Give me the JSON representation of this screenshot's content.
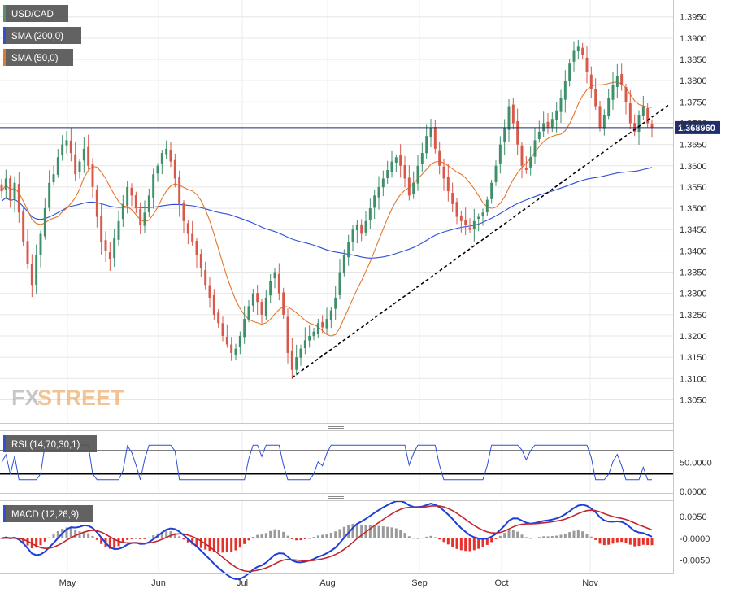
{
  "chart_data": [
    {
      "type": "candlestick",
      "panel": "price",
      "symbol_label": "USD/CAD",
      "legend": [
        {
          "name": "USD/CAD",
          "color": "#5a8f6a"
        },
        {
          "name": "SMA (200,0)",
          "color": "#2e4fd8"
        },
        {
          "name": "SMA (50,0)",
          "color": "#e5762a"
        }
      ],
      "y_ticks": [
        "1.3950",
        "1.3900",
        "1.3850",
        "1.3800",
        "1.3750",
        "1.3700",
        "1.3650",
        "1.3600",
        "1.3550",
        "1.3500",
        "1.3450",
        "1.3400",
        "1.3350",
        "1.3300",
        "1.3250",
        "1.3200",
        "1.3150",
        "1.3100",
        "1.3050"
      ],
      "ylim": [
        1.3005,
        1.398
      ],
      "last_price": "1.368960",
      "last_price_value": 1.36896,
      "x_months": [
        "May",
        "Jun",
        "Jul",
        "Aug",
        "Sep",
        "Oct",
        "Nov"
      ],
      "candle_colors": {
        "up": "#3f8f6b",
        "down": "#d8584a"
      },
      "closes": [
        1.354,
        1.357,
        1.352,
        1.356,
        1.349,
        1.342,
        1.337,
        1.332,
        1.339,
        1.344,
        1.35,
        1.356,
        1.358,
        1.362,
        1.365,
        1.366,
        1.363,
        1.358,
        1.361,
        1.364,
        1.36,
        1.355,
        1.348,
        1.342,
        1.34,
        1.338,
        1.343,
        1.347,
        1.351,
        1.355,
        1.353,
        1.35,
        1.346,
        1.349,
        1.353,
        1.358,
        1.36,
        1.363,
        1.364,
        1.361,
        1.357,
        1.351,
        1.347,
        1.344,
        1.342,
        1.339,
        1.336,
        1.332,
        1.329,
        1.325,
        1.323,
        1.32,
        1.318,
        1.316,
        1.317,
        1.32,
        1.324,
        1.327,
        1.33,
        1.328,
        1.325,
        1.329,
        1.333,
        1.335,
        1.33,
        1.325,
        1.316,
        1.312,
        1.315,
        1.317,
        1.319,
        1.32,
        1.321,
        1.323,
        1.322,
        1.324,
        1.326,
        1.329,
        1.335,
        1.339,
        1.342,
        1.345,
        1.346,
        1.344,
        1.347,
        1.35,
        1.353,
        1.355,
        1.357,
        1.359,
        1.361,
        1.362,
        1.36,
        1.357,
        1.353,
        1.356,
        1.36,
        1.363,
        1.367,
        1.369,
        1.364,
        1.36,
        1.357,
        1.354,
        1.351,
        1.348,
        1.347,
        1.346,
        1.345,
        1.347,
        1.348,
        1.349,
        1.352,
        1.356,
        1.36,
        1.365,
        1.369,
        1.374,
        1.37,
        1.365,
        1.36,
        1.359,
        1.362,
        1.366,
        1.368,
        1.37,
        1.369,
        1.371,
        1.373,
        1.376,
        1.38,
        1.384,
        1.387,
        1.388,
        1.386,
        1.382,
        1.378,
        1.374,
        1.369,
        1.372,
        1.376,
        1.379,
        1.381,
        1.379,
        1.375,
        1.37,
        1.368,
        1.372,
        1.374,
        1.37,
        1.36896
      ]
    },
    {
      "type": "line",
      "panel": "rsi",
      "legend": [
        {
          "name": "RSI (14,70,30,1)",
          "color": "#2e4fd8"
        }
      ],
      "y_ticks": [
        "50.0000",
        "0.0000"
      ],
      "levels": [
        70,
        30
      ],
      "ylim": [
        0,
        100
      ]
    },
    {
      "type": "line+histogram",
      "panel": "macd",
      "legend": [
        {
          "name": "MACD (12,26,9)",
          "color": "#2e4fd8"
        }
      ],
      "y_ticks": [
        "0.0050",
        "-0.0000",
        "-0.0050"
      ],
      "ylim": [
        -0.0075,
        0.008
      ],
      "line_colors": {
        "macd": "#1d3fd9",
        "signal": "#c0262d"
      },
      "histogram_colors": {
        "positive": "#9a9a9a",
        "negative": "#e8302a"
      }
    }
  ],
  "watermark": {
    "text_fx": "FX",
    "text_street": "STREET"
  }
}
